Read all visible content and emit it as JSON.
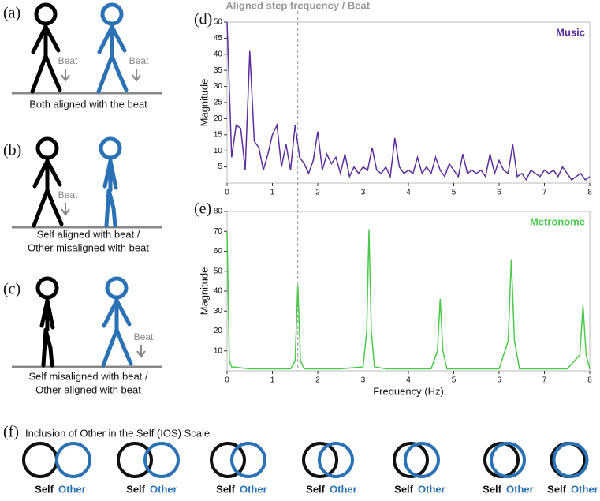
{
  "chart_data": [
    {
      "type": "line",
      "panel": "(d)",
      "annotation": {
        "text": "Aligned step frequency / Beat",
        "x": 1.56
      },
      "ylabel": "Magnitude",
      "x": [
        0,
        0.1,
        0.2,
        0.3,
        0.4,
        0.5,
        0.6,
        0.7,
        0.8,
        0.9,
        1,
        1.1,
        1.2,
        1.3,
        1.4,
        1.5,
        1.6,
        1.7,
        1.8,
        1.9,
        2,
        2.1,
        2.2,
        2.3,
        2.4,
        2.5,
        2.6,
        2.7,
        2.8,
        2.9,
        3,
        3.1,
        3.2,
        3.3,
        3.4,
        3.5,
        3.6,
        3.7,
        3.8,
        3.9,
        4,
        4.1,
        4.2,
        4.3,
        4.4,
        4.5,
        4.6,
        4.7,
        4.8,
        4.9,
        5,
        5.1,
        5.2,
        5.3,
        5.4,
        5.5,
        5.6,
        5.7,
        5.8,
        5.9,
        6,
        6.1,
        6.2,
        6.3,
        6.4,
        6.5,
        6.6,
        6.7,
        6.8,
        6.9,
        7,
        7.1,
        7.2,
        7.3,
        7.4,
        7.5,
        7.6,
        7.7,
        7.8,
        7.9,
        8
      ],
      "series": [
        {
          "name": "Music",
          "color": "#5b2d9e",
          "values": [
            50,
            8,
            18,
            17,
            4,
            41,
            13,
            11,
            4,
            9,
            15,
            18,
            5,
            12,
            4,
            18,
            8,
            6,
            3,
            7,
            16,
            4,
            9,
            6,
            8,
            3,
            9,
            2,
            5,
            3,
            5,
            4,
            11,
            4,
            3,
            5,
            2,
            14,
            5,
            3,
            4,
            3,
            8,
            3,
            5,
            3,
            8,
            4,
            2,
            6,
            4,
            2,
            9,
            3,
            4,
            3,
            4,
            2,
            9,
            3,
            7,
            4,
            3,
            12,
            2,
            3,
            1,
            4,
            3,
            2,
            4,
            3,
            4,
            2,
            5,
            3,
            1,
            2,
            3,
            1,
            2
          ]
        }
      ],
      "xlim": [
        0,
        8
      ],
      "xticks": [
        0,
        1,
        2,
        3,
        4,
        5,
        6,
        7,
        8
      ],
      "ylim": [
        0,
        50
      ],
      "yticks": [
        5,
        10,
        15,
        20,
        25,
        30,
        35,
        40,
        45,
        50
      ]
    },
    {
      "type": "line",
      "panel": "(e)",
      "xlabel": "Frequency (Hz)",
      "ylabel": "Magnitude",
      "x": [
        0,
        0.05,
        0.1,
        0.5,
        1,
        1.4,
        1.5,
        1.56,
        1.62,
        1.7,
        2,
        2.5,
        3,
        3.08,
        3.13,
        3.18,
        3.25,
        3.5,
        4,
        4.5,
        4.64,
        4.7,
        4.76,
        4.85,
        5.5,
        6,
        6.2,
        6.27,
        6.34,
        6.45,
        7,
        7.5,
        7.78,
        7.85,
        7.92,
        8
      ],
      "series": [
        {
          "name": "Metronome",
          "color": "#4cc94c",
          "values": [
            70,
            5,
            2,
            1,
            1,
            1,
            5,
            43,
            5,
            1,
            1,
            1,
            2,
            20,
            71,
            20,
            2,
            1,
            1,
            1,
            10,
            36,
            10,
            1,
            1,
            1,
            15,
            56,
            15,
            1,
            1,
            1,
            8,
            33,
            8,
            1
          ]
        }
      ],
      "xlim": [
        0,
        8
      ],
      "xticks": [
        0,
        1,
        2,
        3,
        4,
        5,
        6,
        7,
        8
      ],
      "ylim": [
        0,
        80
      ],
      "yticks": [
        10,
        20,
        30,
        40,
        50,
        60,
        70,
        80
      ]
    }
  ],
  "panels": [
    {
      "label": "(a)",
      "beats": [
        "Beat",
        "Beat"
      ],
      "caption": [
        "Both aligned with the beat"
      ]
    },
    {
      "label": "(b)",
      "beats": [
        "Beat"
      ],
      "caption": [
        "Self aligned with beat /",
        "Other misaligned with beat"
      ]
    },
    {
      "label": "(c)",
      "beats": [
        "Beat"
      ],
      "caption": [
        "Self misaligned with beat /",
        "Other aligned with beat"
      ]
    }
  ],
  "ios": {
    "label": "(f)",
    "title": "Inclusion of Other in the Self (IOS) Scale",
    "items": [
      {
        "self": "Self",
        "other": "Other"
      },
      {
        "self": "Self",
        "other": "Other"
      },
      {
        "self": "Self",
        "other": "Other"
      },
      {
        "self": "Self",
        "other": "Other"
      },
      {
        "self": "Self",
        "other": "Other"
      },
      {
        "self": "Self",
        "other": "Other"
      },
      {
        "self": "Self",
        "other": "Other"
      }
    ]
  }
}
